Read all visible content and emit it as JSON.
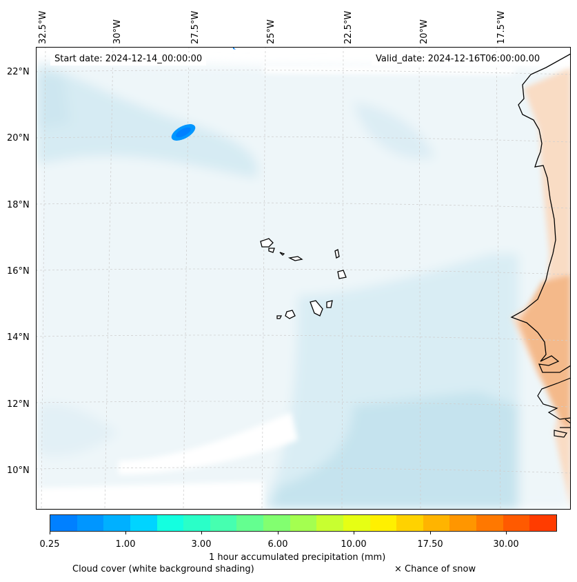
{
  "map": {
    "start_date": "Start date: 2024-12-14_00:00:00",
    "valid_date": "Valid_date: 2024-12-16T06:00:00.00",
    "lon_labels": [
      "32.5°W",
      "30°W",
      "27.5°W",
      "25°W",
      "22.5°W",
      "20°W",
      "17.5°W"
    ],
    "lat_labels": [
      "22°N",
      "20°N",
      "18°N",
      "16°N",
      "14°N",
      "12°N",
      "10°N"
    ],
    "region": "Cape Verde Islands and West African coast (Senegal, Gambia, Guinea-Bissau)"
  },
  "colorbar": {
    "colors": [
      "#0080ff",
      "#0096ff",
      "#00b0ff",
      "#00d4ff",
      "#14ffe0",
      "#2affc8",
      "#46ffb0",
      "#64ff90",
      "#82ff70",
      "#a4ff50",
      "#c8ff30",
      "#e6ff14",
      "#fff000",
      "#ffd200",
      "#ffb400",
      "#ff9600",
      "#ff7800",
      "#ff5a00",
      "#ff3c00"
    ],
    "tick_labels": [
      "0.25",
      "1.00",
      "3.00",
      "6.00",
      "10.00",
      "17.50",
      "30.00"
    ],
    "label": "1 hour accumulated precipitation (mm)"
  },
  "legend": {
    "cloud_cover": "Cloud cover (white background shading)",
    "snow": "× Chance of snow"
  }
}
